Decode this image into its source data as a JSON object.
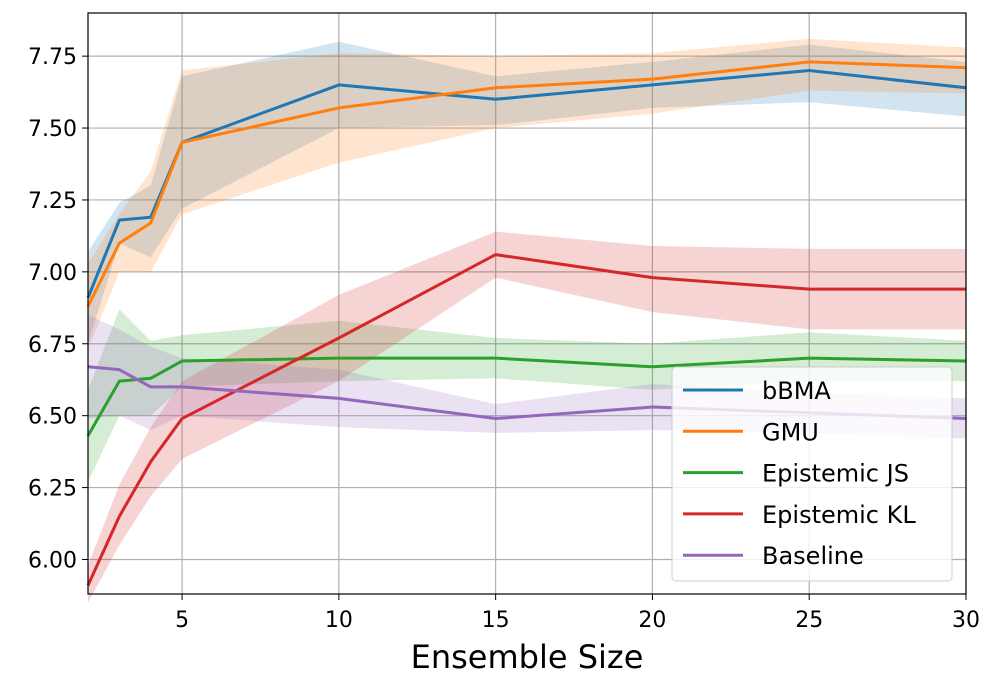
{
  "chart_data": {
    "type": "line",
    "title": "",
    "xlabel": "Ensemble Size",
    "ylabel": "",
    "xlim": [
      2,
      30
    ],
    "ylim": [
      5.88,
      7.9
    ],
    "xticks": [
      5,
      10,
      15,
      20,
      25,
      30
    ],
    "yticks": [
      6.0,
      6.25,
      6.5,
      6.75,
      7.0,
      7.25,
      7.5,
      7.75
    ],
    "ytick_labels": [
      "6.00",
      "6.25",
      "6.50",
      "6.75",
      "7.00",
      "7.25",
      "7.50",
      "7.75"
    ],
    "grid": true,
    "legend_position": "lower-right",
    "x": [
      2,
      3,
      4,
      5,
      10,
      15,
      20,
      25,
      30
    ],
    "series": [
      {
        "name": "bBMA",
        "color": "#1f77b4",
        "values": [
          6.91,
          7.18,
          7.19,
          7.45,
          7.65,
          7.6,
          7.65,
          7.7,
          7.64
        ],
        "lower": [
          6.75,
          7.1,
          7.05,
          7.22,
          7.5,
          7.51,
          7.57,
          7.59,
          7.54
        ],
        "upper": [
          7.07,
          7.24,
          7.3,
          7.68,
          7.8,
          7.68,
          7.73,
          7.79,
          7.73
        ]
      },
      {
        "name": "GMU",
        "color": "#ff7f0e",
        "values": [
          6.88,
          7.1,
          7.17,
          7.45,
          7.57,
          7.64,
          7.67,
          7.73,
          7.71
        ],
        "lower": [
          6.73,
          7.0,
          7.0,
          7.2,
          7.38,
          7.5,
          7.55,
          7.63,
          7.62
        ],
        "upper": [
          7.03,
          7.2,
          7.35,
          7.7,
          7.76,
          7.75,
          7.76,
          7.81,
          7.78
        ]
      },
      {
        "name": "Epistemic JS",
        "color": "#2ca02c",
        "values": [
          6.43,
          6.62,
          6.63,
          6.69,
          6.7,
          6.7,
          6.67,
          6.7,
          6.69
        ],
        "lower": [
          6.27,
          6.5,
          6.5,
          6.6,
          6.62,
          6.63,
          6.59,
          6.62,
          6.62
        ],
        "upper": [
          6.59,
          6.87,
          6.76,
          6.78,
          6.83,
          6.77,
          6.75,
          6.79,
          6.76
        ]
      },
      {
        "name": "Epistemic KL",
        "color": "#d62728",
        "values": [
          5.91,
          6.15,
          6.34,
          6.49,
          6.77,
          7.06,
          6.98,
          6.94,
          6.94
        ],
        "lower": [
          5.85,
          6.05,
          6.22,
          6.35,
          6.62,
          6.98,
          6.86,
          6.8,
          6.8
        ],
        "upper": [
          5.98,
          6.26,
          6.46,
          6.62,
          6.92,
          7.14,
          7.09,
          7.08,
          7.08
        ]
      },
      {
        "name": "Baseline",
        "color": "#9467bd",
        "values": [
          6.67,
          6.66,
          6.6,
          6.6,
          6.56,
          6.49,
          6.53,
          6.51,
          6.49
        ],
        "lower": [
          6.49,
          6.5,
          6.45,
          6.5,
          6.46,
          6.44,
          6.45,
          6.44,
          6.42
        ],
        "upper": [
          6.85,
          6.8,
          6.74,
          6.7,
          6.66,
          6.54,
          6.61,
          6.58,
          6.56
        ]
      }
    ]
  }
}
